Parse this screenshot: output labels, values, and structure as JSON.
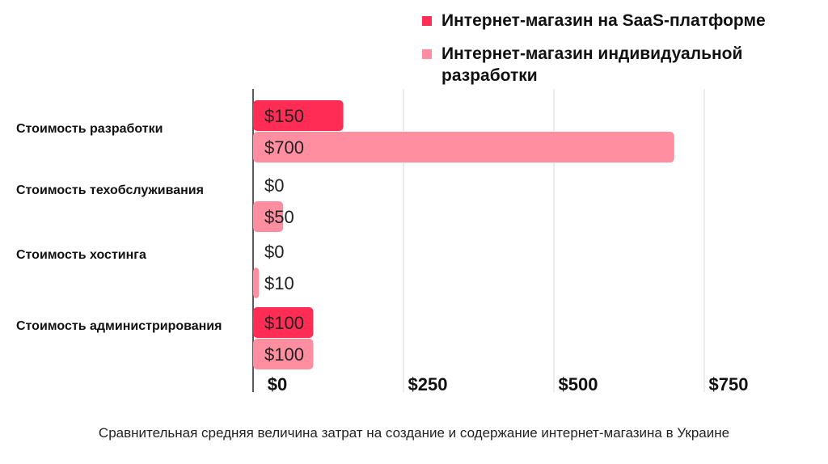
{
  "chart_data": {
    "type": "bar",
    "orientation": "horizontal",
    "categories": [
      "Стоимость разработки",
      "Стоимость техобслуживания",
      "Стоимость хостинга",
      "Стоимость администрирования"
    ],
    "series": [
      {
        "name": "Интернет-магазин на SaaS-платформе",
        "values": [
          150,
          0,
          0,
          100
        ],
        "labels": [
          "$150",
          "$0",
          "$0",
          "$100"
        ],
        "color": "#ff2d55"
      },
      {
        "name": "Интернет-магазин индивидуальной разработки",
        "values": [
          700,
          50,
          10,
          100
        ],
        "labels": [
          "$700",
          "$50",
          "$10",
          "$100"
        ],
        "color": "#ff8ea0"
      }
    ],
    "xticks": [
      "$0",
      "$250",
      "$500",
      "$750"
    ],
    "xlim": [
      0,
      750
    ],
    "grid": true,
    "legend_position": "top-right"
  },
  "legend": {
    "saas": "Интернет-магазин на SaaS-платформе",
    "custom": "Интернет-магазин индивидуальной разработки"
  },
  "caption": "Сравнительная средняя величина затрат на создание и содержание интернет-магазина в Украине",
  "colors": {
    "saas": "#ff2d55",
    "custom": "#ff8ea0",
    "grid": "#d9d9d9",
    "axis": "#222222"
  }
}
